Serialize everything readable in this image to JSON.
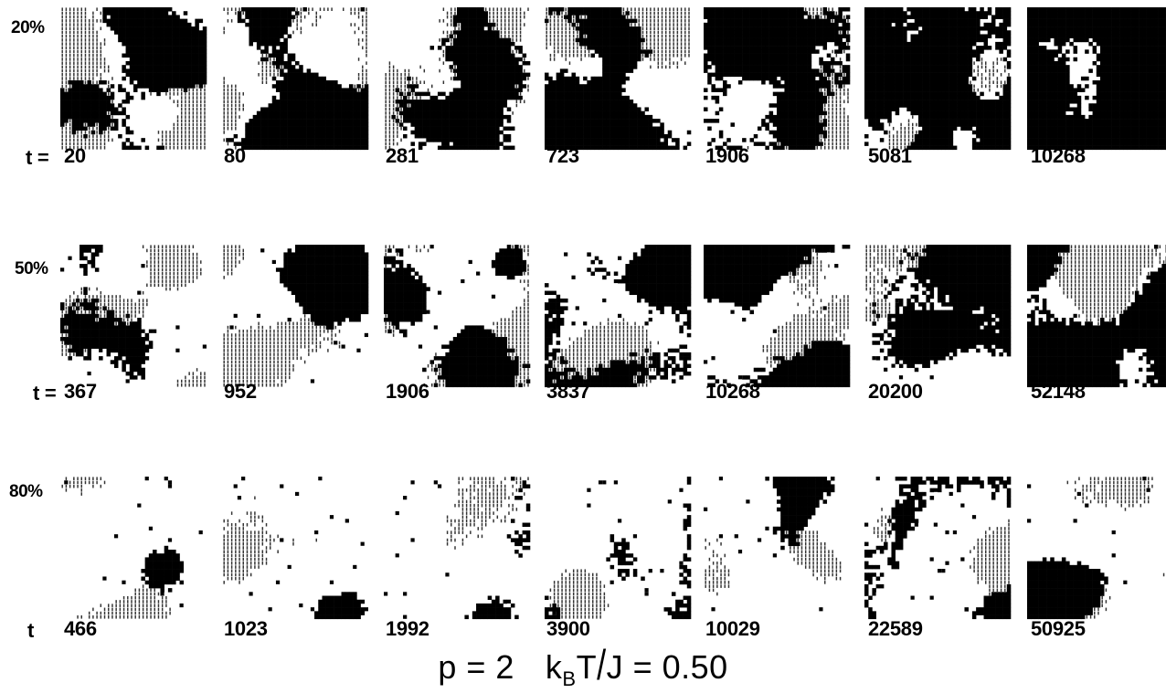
{
  "figure": {
    "rows": [
      {
        "fraction_label": "20%",
        "time_prefix": "t =",
        "times": [
          "20",
          "80",
          "281",
          "723",
          "1906",
          "5081",
          "10268"
        ],
        "black_fraction": [
          0.45,
          0.5,
          0.5,
          0.55,
          0.65,
          0.8,
          0.92
        ]
      },
      {
        "fraction_label": "50%",
        "time_prefix": "t =",
        "times": [
          "367",
          "952",
          "1906",
          "3837",
          "10268",
          "20200",
          "52148"
        ],
        "black_fraction": [
          0.2,
          0.28,
          0.35,
          0.38,
          0.42,
          0.55,
          0.6
        ]
      },
      {
        "fraction_label": "80%",
        "time_prefix": "t",
        "times": [
          "466",
          "1023",
          "1992",
          "3900",
          "10029",
          "22589",
          "50925"
        ],
        "black_fraction": [
          0.06,
          0.06,
          0.06,
          0.08,
          0.12,
          0.18,
          0.2
        ]
      }
    ],
    "caption": {
      "p_part": "p = 2",
      "kb": "k",
      "kb_sub": "B",
      "t_part": "T",
      "slash": "/",
      "rest": "J = 0.50"
    },
    "colors": {
      "black_domain": "#000000",
      "hatched_domain": "#333333",
      "background": "#ffffff"
    }
  }
}
